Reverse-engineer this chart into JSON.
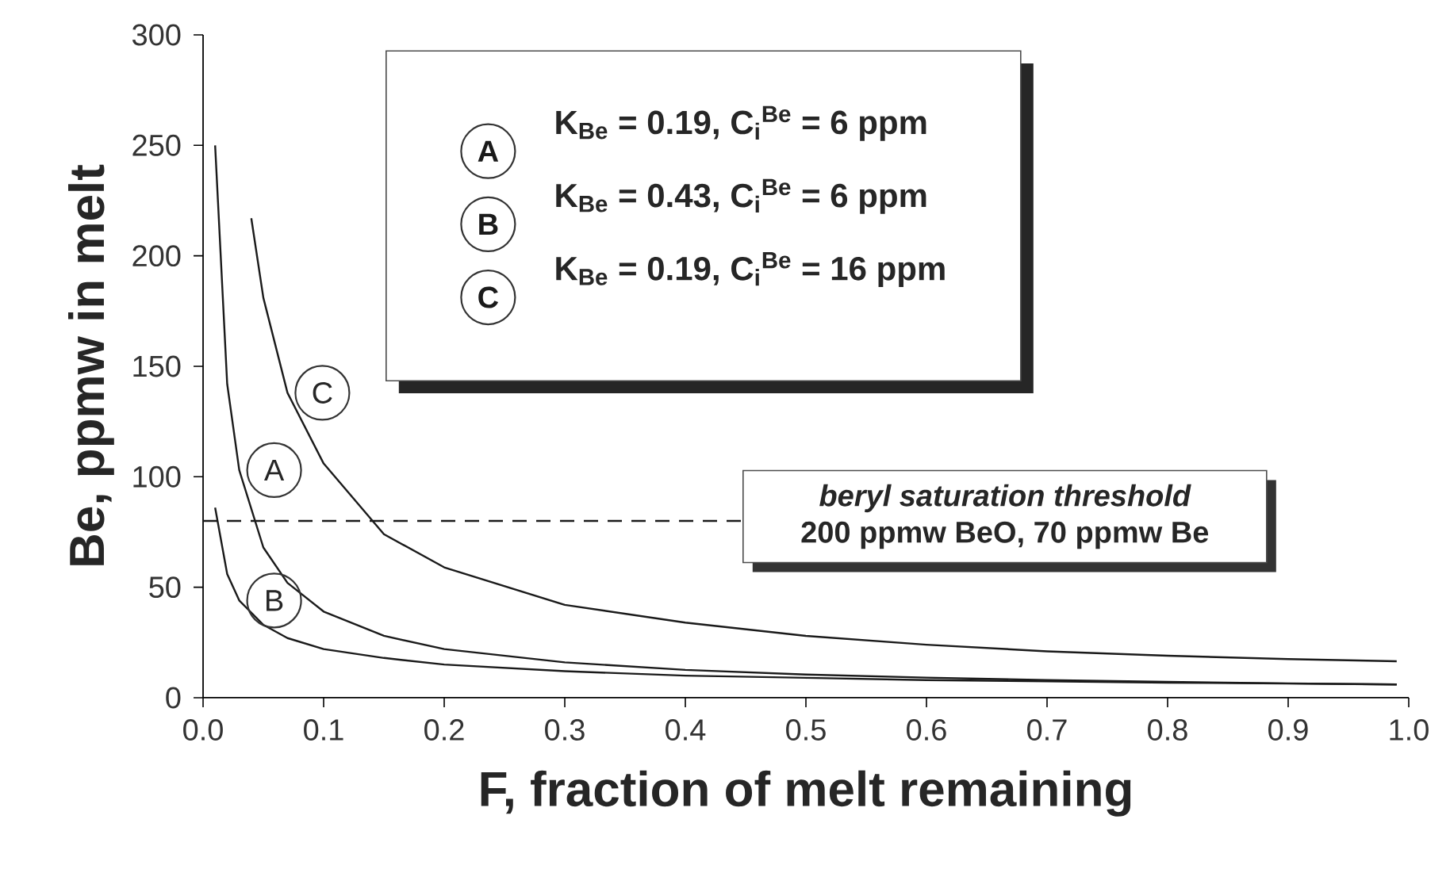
{
  "chart_data": {
    "type": "line",
    "xlabel": "F, fraction of melt remaining",
    "ylabel": "Be, ppmw in melt",
    "xlim": [
      0,
      1.0
    ],
    "ylim": [
      0,
      300
    ],
    "xticks": [
      {
        "value": 0,
        "label": "0.0"
      },
      {
        "value": 0.1,
        "label": "0.1"
      },
      {
        "value": 0.2,
        "label": "0.2"
      },
      {
        "value": 0.3,
        "label": "0.3"
      },
      {
        "value": 0.4,
        "label": "0.4"
      },
      {
        "value": 0.5,
        "label": "0.5"
      },
      {
        "value": 0.6,
        "label": "0.6"
      },
      {
        "value": 0.7,
        "label": "0.7"
      },
      {
        "value": 0.8,
        "label": "0.8"
      },
      {
        "value": 0.9,
        "label": "0.9"
      },
      {
        "value": 1.0,
        "label": "1.0"
      }
    ],
    "yticks": [
      0,
      50,
      100,
      150,
      200,
      250,
      300
    ],
    "series": [
      {
        "name": "A",
        "color": "#1a1a1a",
        "x": [
          0.01,
          0.02,
          0.03,
          0.05,
          0.07,
          0.1,
          0.15,
          0.2,
          0.3,
          0.4,
          0.5,
          0.6,
          0.7,
          0.8,
          0.9,
          0.99
        ],
        "values": [
          250,
          142,
          103,
          68,
          52,
          39,
          28,
          22,
          16,
          12.6,
          10.5,
          9.1,
          8,
          7.2,
          6.5,
          6
        ]
      },
      {
        "name": "B",
        "color": "#1a1a1a",
        "x": [
          0.01,
          0.02,
          0.03,
          0.05,
          0.07,
          0.1,
          0.15,
          0.2,
          0.3,
          0.4,
          0.5,
          0.6,
          0.7,
          0.8,
          0.9,
          0.99
        ],
        "values": [
          86,
          56,
          44,
          33,
          27,
          22,
          18,
          15,
          12,
          10,
          9,
          8,
          7.4,
          6.8,
          6.4,
          6
        ]
      },
      {
        "name": "C",
        "color": "#1a1a1a",
        "x": [
          0.04,
          0.05,
          0.07,
          0.1,
          0.15,
          0.2,
          0.3,
          0.4,
          0.5,
          0.6,
          0.7,
          0.8,
          0.9,
          0.99
        ],
        "values": [
          217,
          181,
          138,
          106,
          74,
          59,
          42,
          34,
          28,
          24,
          21,
          19,
          17.5,
          16.5
        ]
      }
    ],
    "annotations": [
      "200 ppmw BeO, 70 ppmw Be",
      "K$_{Be}$ = 0.19, C$_{i}$$^{Be}$ = 6 ppm",
      "K$_{Be}$ = 0.43, C$_{i}$$^{Be}$ = 6 ppm",
      "K$_{Be}$ = 0.19, C$_{i}$$^{Be}$ = 16 ppm"
    ],
    "ref_lines": [
      {
        "axis": "y",
        "value": 80,
        "label": "beryl saturation threshold",
        "line_style": "dashed",
        "color": "#1a1a1a"
      }
    ],
    "grid": false,
    "marker": "none",
    "line_style": "solid"
  }
}
